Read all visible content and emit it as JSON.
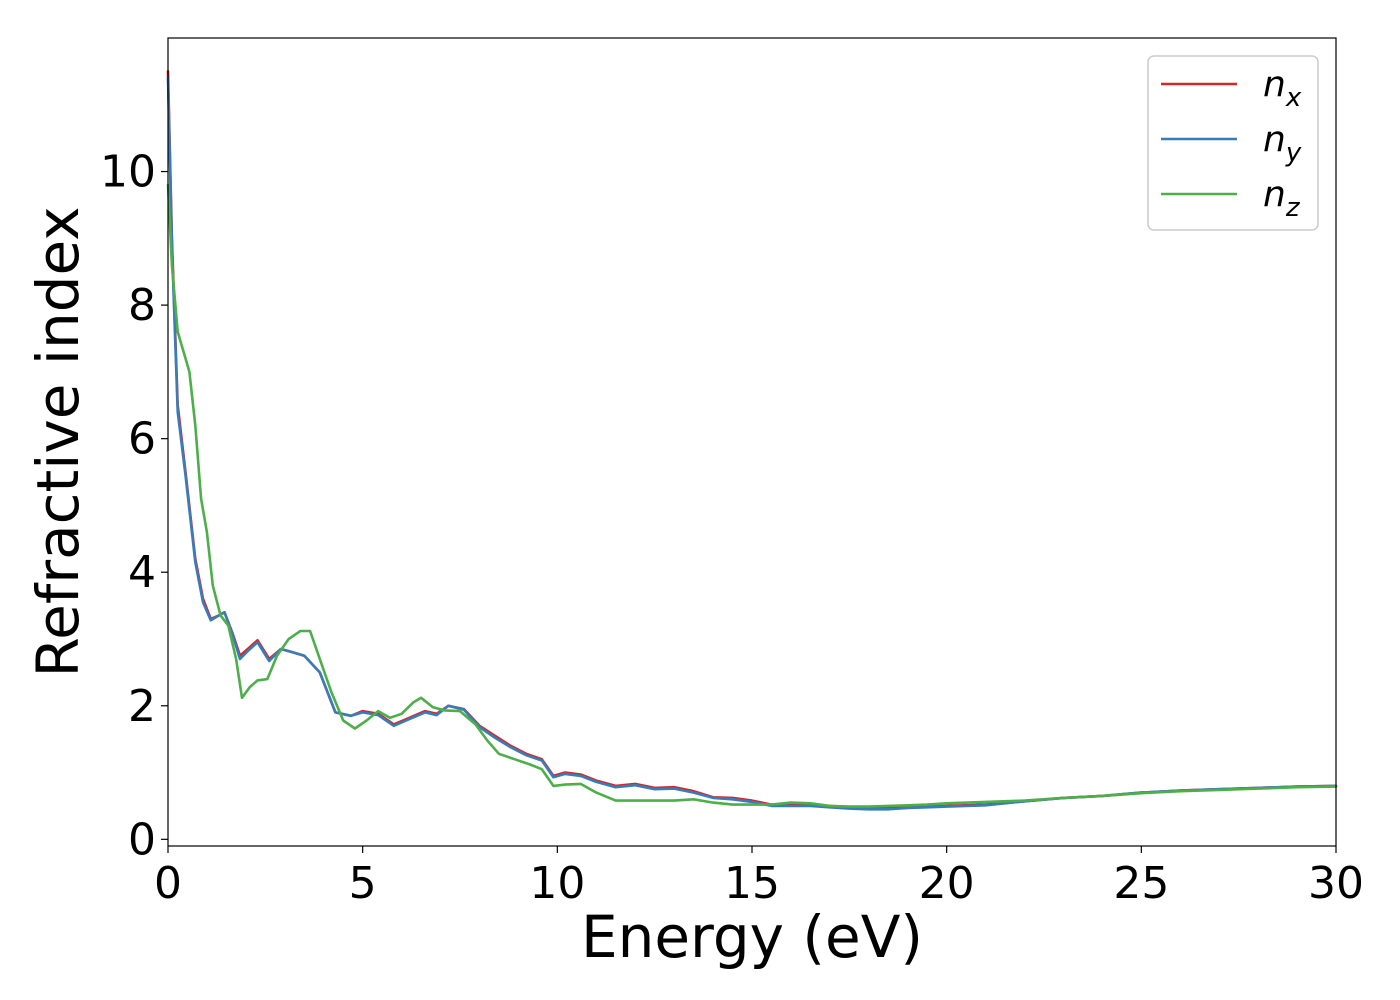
{
  "chart_data": {
    "type": "line",
    "title": "",
    "xlabel": "Energy (eV)",
    "ylabel": "Refractive index",
    "xlim": [
      0,
      30
    ],
    "ylim": [
      -0.1,
      12
    ],
    "xticks": [
      0,
      5,
      10,
      15,
      20,
      25,
      30
    ],
    "yticks": [
      0,
      2,
      4,
      6,
      8,
      10
    ],
    "grid": false,
    "legend_position": "top-right",
    "series": [
      {
        "name": "n",
        "subscript": "x",
        "color": "#d62728",
        "x": [
          0,
          0.1,
          0.25,
          0.45,
          0.7,
          0.9,
          1.1,
          1.3,
          1.45,
          1.65,
          1.85,
          2.05,
          2.3,
          2.6,
          2.9,
          3.2,
          3.5,
          3.9,
          4.3,
          4.7,
          5.0,
          5.4,
          5.8,
          6.2,
          6.6,
          6.9,
          7.2,
          7.6,
          8.0,
          8.4,
          8.8,
          9.2,
          9.6,
          9.9,
          10.2,
          10.6,
          11.0,
          11.5,
          12.0,
          12.5,
          13.0,
          13.5,
          14.0,
          14.5,
          15.0,
          15.5,
          16.0,
          16.5,
          17.0,
          17.5,
          18.0,
          18.5,
          19.0,
          19.5,
          20.0,
          21.0,
          22.0,
          23.0,
          24.0,
          25.0,
          26.0,
          27.0,
          28.0,
          29.0,
          30.0
        ],
        "y": [
          11.5,
          9.0,
          6.5,
          5.5,
          4.2,
          3.6,
          3.3,
          3.35,
          3.4,
          3.1,
          2.75,
          2.85,
          2.98,
          2.7,
          2.85,
          2.8,
          2.75,
          2.5,
          1.9,
          1.85,
          1.92,
          1.88,
          1.72,
          1.82,
          1.92,
          1.88,
          2.0,
          1.95,
          1.7,
          1.55,
          1.4,
          1.28,
          1.2,
          0.95,
          1.0,
          0.97,
          0.88,
          0.8,
          0.83,
          0.77,
          0.78,
          0.72,
          0.63,
          0.62,
          0.58,
          0.52,
          0.52,
          0.51,
          0.5,
          0.48,
          0.47,
          0.47,
          0.48,
          0.49,
          0.5,
          0.52,
          0.57,
          0.62,
          0.65,
          0.7,
          0.73,
          0.75,
          0.77,
          0.79,
          0.8
        ]
      },
      {
        "name": "n",
        "subscript": "y",
        "color": "#377eb8",
        "x": [
          0,
          0.1,
          0.25,
          0.45,
          0.7,
          0.9,
          1.1,
          1.3,
          1.45,
          1.65,
          1.85,
          2.05,
          2.3,
          2.6,
          2.9,
          3.2,
          3.5,
          3.9,
          4.3,
          4.7,
          5.0,
          5.4,
          5.8,
          6.2,
          6.6,
          6.9,
          7.2,
          7.6,
          8.0,
          8.4,
          8.8,
          9.2,
          9.6,
          9.9,
          10.2,
          10.6,
          11.0,
          11.5,
          12.0,
          12.5,
          13.0,
          13.5,
          14.0,
          14.5,
          15.0,
          15.5,
          16.0,
          16.5,
          17.0,
          17.5,
          18.0,
          18.5,
          19.0,
          19.5,
          20.0,
          21.0,
          22.0,
          23.0,
          24.0,
          25.0,
          26.0,
          27.0,
          28.0,
          29.0,
          30.0
        ],
        "y": [
          11.4,
          8.9,
          6.4,
          5.45,
          4.15,
          3.55,
          3.28,
          3.35,
          3.4,
          3.08,
          2.7,
          2.82,
          2.95,
          2.67,
          2.85,
          2.8,
          2.75,
          2.5,
          1.9,
          1.85,
          1.9,
          1.86,
          1.7,
          1.8,
          1.9,
          1.86,
          2.0,
          1.94,
          1.68,
          1.52,
          1.38,
          1.26,
          1.18,
          0.93,
          0.98,
          0.95,
          0.86,
          0.78,
          0.81,
          0.75,
          0.76,
          0.7,
          0.62,
          0.6,
          0.56,
          0.5,
          0.5,
          0.5,
          0.48,
          0.46,
          0.45,
          0.45,
          0.47,
          0.48,
          0.49,
          0.51,
          0.57,
          0.62,
          0.65,
          0.7,
          0.73,
          0.75,
          0.77,
          0.79,
          0.8
        ]
      },
      {
        "name": "n",
        "subscript": "z",
        "color": "#4daf4a",
        "x": [
          0,
          0.1,
          0.25,
          0.4,
          0.55,
          0.7,
          0.85,
          1.0,
          1.15,
          1.35,
          1.55,
          1.75,
          1.9,
          2.1,
          2.3,
          2.55,
          2.8,
          3.1,
          3.4,
          3.65,
          3.9,
          4.2,
          4.5,
          4.8,
          5.1,
          5.4,
          5.7,
          6.0,
          6.3,
          6.5,
          6.8,
          7.1,
          7.5,
          7.9,
          8.2,
          8.5,
          8.9,
          9.3,
          9.6,
          9.9,
          10.2,
          10.6,
          11.0,
          11.5,
          12.0,
          12.5,
          13.0,
          13.5,
          14.0,
          14.5,
          15.0,
          15.5,
          16.0,
          16.5,
          17.0,
          17.5,
          18.0,
          18.5,
          19.0,
          19.5,
          20.0,
          21.0,
          22.0,
          23.0,
          24.0,
          25.0,
          26.0,
          27.0,
          28.0,
          29.0,
          30.0
        ],
        "y": [
          9.8,
          8.6,
          7.6,
          7.3,
          7.0,
          6.2,
          5.1,
          4.6,
          3.8,
          3.35,
          3.2,
          2.7,
          2.12,
          2.28,
          2.38,
          2.4,
          2.75,
          3.0,
          3.12,
          3.12,
          2.7,
          2.2,
          1.78,
          1.66,
          1.78,
          1.92,
          1.82,
          1.88,
          2.05,
          2.12,
          1.98,
          1.93,
          1.92,
          1.72,
          1.48,
          1.28,
          1.2,
          1.12,
          1.05,
          0.8,
          0.82,
          0.83,
          0.7,
          0.58,
          0.58,
          0.58,
          0.58,
          0.6,
          0.55,
          0.52,
          0.52,
          0.52,
          0.55,
          0.54,
          0.5,
          0.49,
          0.49,
          0.5,
          0.51,
          0.52,
          0.54,
          0.56,
          0.58,
          0.62,
          0.65,
          0.69,
          0.72,
          0.74,
          0.76,
          0.78,
          0.79
        ]
      }
    ]
  }
}
